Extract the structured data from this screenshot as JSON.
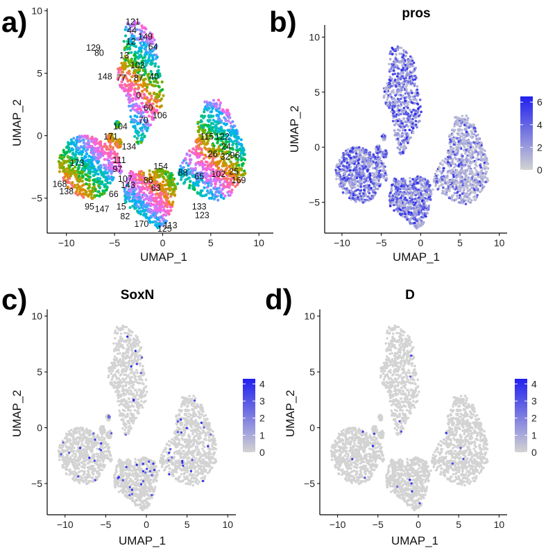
{
  "colors": {
    "low": "#d3d3d3",
    "high": "#2020f0",
    "axis": "#000000",
    "cluster_palette": [
      "#f8766d",
      "#e58700",
      "#c99800",
      "#a3a500",
      "#6bb100",
      "#00ba38",
      "#00bf7d",
      "#00c0af",
      "#00bcd8",
      "#00b0f6",
      "#619cff",
      "#b983ff",
      "#e76bf3",
      "#fd61d1",
      "#ff67a4"
    ]
  },
  "chart_data": [
    {
      "panel": "a)",
      "type": "scatter",
      "title": "",
      "xlabel": "UMAP_1",
      "ylabel": "UMAP_2",
      "xlim": [
        -12,
        11.5
      ],
      "ylim": [
        -7.8,
        10.2
      ],
      "xticks": [
        -10,
        -5,
        0,
        5,
        10
      ],
      "yticks": [
        -5,
        0,
        5,
        10
      ],
      "xtick_labels": [
        "−10",
        "−5",
        "0",
        "5",
        "10"
      ],
      "ytick_labels": [
        "−5",
        "0",
        "5",
        "10"
      ],
      "legend": "none",
      "cluster_labels": [
        {
          "text": "121",
          "x": -3.1,
          "y": 8.9
        },
        {
          "text": "44",
          "x": -3.2,
          "y": 8.2
        },
        {
          "text": "149",
          "x": -1.8,
          "y": 7.7
        },
        {
          "text": "12",
          "x": -3.3,
          "y": 7.3
        },
        {
          "text": "64",
          "x": -1.0,
          "y": 6.9
        },
        {
          "text": "129",
          "x": -7.2,
          "y": 6.8
        },
        {
          "text": "80",
          "x": -6.6,
          "y": 6.4
        },
        {
          "text": "13",
          "x": -4.0,
          "y": 6.2
        },
        {
          "text": "103",
          "x": -2.6,
          "y": 5.4
        },
        {
          "text": "148",
          "x": -6.0,
          "y": 4.5
        },
        {
          "text": "77",
          "x": -4.3,
          "y": 4.4
        },
        {
          "text": "87",
          "x": -2.5,
          "y": 4.4
        },
        {
          "text": "40",
          "x": -0.9,
          "y": 4.5
        },
        {
          "text": "0",
          "x": -2.5,
          "y": 3.0
        },
        {
          "text": "60",
          "x": -1.5,
          "y": 2.0
        },
        {
          "text": "106",
          "x": -0.3,
          "y": 1.4
        },
        {
          "text": "70",
          "x": -2.0,
          "y": 1.0
        },
        {
          "text": "104",
          "x": -4.4,
          "y": 0.5
        },
        {
          "text": "171",
          "x": -5.4,
          "y": -0.3
        },
        {
          "text": "134",
          "x": -3.5,
          "y": -1.1
        },
        {
          "text": "115",
          "x": 4.6,
          "y": -0.3
        },
        {
          "text": "122",
          "x": 6.2,
          "y": -0.3
        },
        {
          "text": "24",
          "x": 6.6,
          "y": -1.1
        },
        {
          "text": "26",
          "x": 5.2,
          "y": -1.7
        },
        {
          "text": "32",
          "x": 6.5,
          "y": -1.9
        },
        {
          "text": "96",
          "x": 7.5,
          "y": -1.8
        },
        {
          "text": "102",
          "x": 5.8,
          "y": -3.3
        },
        {
          "text": "25",
          "x": 7.4,
          "y": -3.1
        },
        {
          "text": "173",
          "x": -8.9,
          "y": -2.4
        },
        {
          "text": "111",
          "x": -4.5,
          "y": -2.2
        },
        {
          "text": "97",
          "x": -4.7,
          "y": -2.9
        },
        {
          "text": "154",
          "x": -0.2,
          "y": -2.7
        },
        {
          "text": "88",
          "x": 2.1,
          "y": -3.2
        },
        {
          "text": "65",
          "x": 3.8,
          "y": -3.5
        },
        {
          "text": "107",
          "x": -3.9,
          "y": -3.7
        },
        {
          "text": "169",
          "x": 7.9,
          "y": -3.8
        },
        {
          "text": "168",
          "x": -10.7,
          "y": -4.1
        },
        {
          "text": "143",
          "x": -3.6,
          "y": -4.2
        },
        {
          "text": "86",
          "x": -1.5,
          "y": -3.8
        },
        {
          "text": "63",
          "x": -0.7,
          "y": -4.4
        },
        {
          "text": "138",
          "x": -10.0,
          "y": -4.7
        },
        {
          "text": "66",
          "x": -5.1,
          "y": -4.9
        },
        {
          "text": "95",
          "x": -7.6,
          "y": -5.9
        },
        {
          "text": "147",
          "x": -6.3,
          "y": -6.1
        },
        {
          "text": "15",
          "x": -4.3,
          "y": -5.9
        },
        {
          "text": "133",
          "x": 3.8,
          "y": -5.9
        },
        {
          "text": "82",
          "x": -3.9,
          "y": -6.7
        },
        {
          "text": "123",
          "x": 4.1,
          "y": -6.6
        },
        {
          "text": "170",
          "x": -2.2,
          "y": -7.3
        },
        {
          "text": "113",
          "x": 0.8,
          "y": -7.4
        },
        {
          "text": "125",
          "x": 0.2,
          "y": -7.7
        }
      ]
    },
    {
      "panel": "b)",
      "type": "scatter",
      "title": "pros",
      "xlabel": "UMAP_1",
      "ylabel": "UMAP_2",
      "xlim": [
        -12.2,
        11
      ],
      "ylim": [
        -7.8,
        11.1
      ],
      "xticks": [
        -10,
        -5,
        0,
        5,
        10
      ],
      "yticks": [
        -5,
        0,
        5,
        10
      ],
      "xtick_labels": [
        "−10",
        "−5",
        "0",
        "5",
        "10"
      ],
      "ytick_labels": [
        "−5",
        "0",
        "5",
        "10"
      ],
      "legend": "right",
      "colorbar": {
        "min": 0,
        "max": 6.5,
        "ticks": [
          0,
          2,
          4,
          6
        ],
        "tick_labels": [
          "0",
          "2",
          "4",
          "6"
        ]
      },
      "expression": "high"
    },
    {
      "panel": "c)",
      "type": "scatter",
      "title": "SoxN",
      "xlabel": "UMAP_1",
      "ylabel": "UMAP_2",
      "xlim": [
        -12.2,
        11
      ],
      "ylim": [
        -7.8,
        10.6
      ],
      "xticks": [
        -10,
        -5,
        0,
        5,
        10
      ],
      "yticks": [
        -5,
        0,
        5,
        10
      ],
      "xtick_labels": [
        "−10",
        "−5",
        "0",
        "5",
        "10"
      ],
      "ytick_labels": [
        "−5",
        "0",
        "5",
        "10"
      ],
      "legend": "right",
      "colorbar": {
        "min": 0,
        "max": 4.3,
        "ticks": [
          0,
          1,
          2,
          3,
          4
        ],
        "tick_labels": [
          "0",
          "1",
          "2",
          "3",
          "4"
        ]
      },
      "expression": "sparse"
    },
    {
      "panel": "d)",
      "type": "scatter",
      "title": "D",
      "xlabel": "UMAP_1",
      "ylabel": "UMAP_2",
      "xlim": [
        -12.2,
        11
      ],
      "ylim": [
        -7.8,
        10.6
      ],
      "xticks": [
        -10,
        -5,
        0,
        5,
        10
      ],
      "yticks": [
        -5,
        0,
        5,
        10
      ],
      "xtick_labels": [
        "−10",
        "−5",
        "0",
        "5",
        "10"
      ],
      "ytick_labels": [
        "−5",
        "0",
        "5",
        "10"
      ],
      "legend": "right",
      "colorbar": {
        "min": 0,
        "max": 4.3,
        "ticks": [
          0,
          1,
          2,
          3,
          4
        ],
        "tick_labels": [
          "0",
          "1",
          "2",
          "3",
          "4"
        ]
      },
      "expression": "rare"
    }
  ]
}
